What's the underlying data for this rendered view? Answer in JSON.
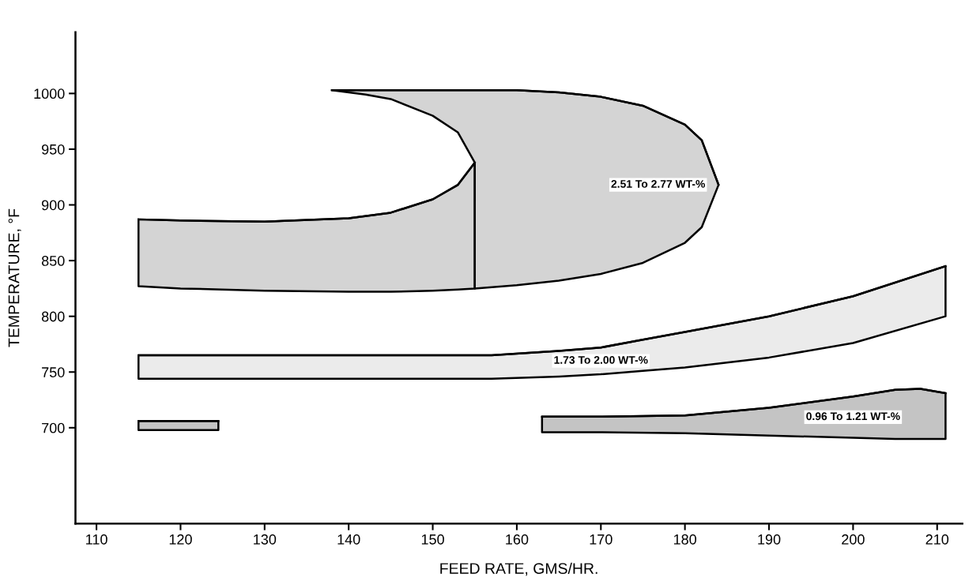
{
  "chart_data": {
    "type": "line",
    "xlabel": "FEED RATE, GMS/HR.",
    "ylabel": "TEMPERATURE, °F",
    "xlim": [
      107.5,
      213
    ],
    "ylim": [
      614,
      1055
    ],
    "xticks": [
      110,
      120,
      130,
      140,
      150,
      160,
      170,
      180,
      190,
      200,
      210
    ],
    "yticks": [
      700,
      750,
      800,
      850,
      900,
      950,
      1000
    ],
    "grid": false,
    "legend": false,
    "marker": "none",
    "series": [
      {
        "color": "#000000",
        "x": [
          115,
          120,
          130,
          140,
          145,
          150,
          153,
          155
        ],
        "values": [
          887,
          886,
          885,
          888,
          893,
          905,
          918,
          938
        ],
        "lower": [
          827,
          825,
          823,
          822,
          822,
          823,
          824,
          825
        ],
        "upper": [
          887,
          886,
          885,
          888,
          893,
          905,
          918,
          938
        ]
      },
      {
        "name": "2.51 To 2.77 WT-%",
        "color": "#000000",
        "x": [
          138,
          142,
          145,
          150,
          153,
          155,
          155,
          160,
          165,
          170,
          175,
          180,
          182,
          184
        ],
        "values": [
          1003,
          1003,
          1003,
          1003,
          1003,
          1003,
          1003,
          1003,
          1001,
          997,
          989,
          972,
          958,
          918
        ],
        "lower": [
          1003,
          999,
          995,
          980,
          965,
          938,
          825,
          828,
          832,
          838,
          848,
          866,
          880,
          918
        ],
        "upper": [
          1003,
          1003,
          1003,
          1003,
          1003,
          1003,
          1003,
          1003,
          1001,
          997,
          989,
          972,
          958,
          918
        ]
      },
      {
        "name": "1.73 To 2.00 WT-%",
        "color": "#000000",
        "x": [
          115,
          130,
          145,
          157,
          165,
          170,
          175,
          180,
          190,
          200,
          211
        ],
        "values": [
          765,
          765,
          765,
          765,
          769,
          772,
          779,
          786,
          800,
          818,
          845
        ],
        "lower": [
          744,
          744,
          744,
          744,
          746,
          748,
          751,
          754,
          763,
          776,
          800
        ],
        "upper": [
          765,
          765,
          765,
          765,
          769,
          772,
          779,
          786,
          800,
          818,
          845
        ]
      },
      {
        "color": "#000000",
        "x": [
          115,
          124.5
        ],
        "values": [
          706,
          706
        ],
        "lower": [
          698,
          698
        ],
        "upper": [
          706,
          706
        ]
      },
      {
        "name": "0.96 To 1.21 WT-%",
        "color": "#000000",
        "x": [
          163,
          170,
          180,
          190,
          200,
          205,
          208,
          211
        ],
        "values": [
          710,
          710,
          711,
          718,
          728,
          734,
          735,
          731
        ],
        "lower": [
          696,
          696,
          695,
          693,
          691,
          690,
          690,
          690
        ],
        "upper": [
          710,
          710,
          711,
          718,
          728,
          734,
          735,
          731
        ]
      }
    ]
  }
}
